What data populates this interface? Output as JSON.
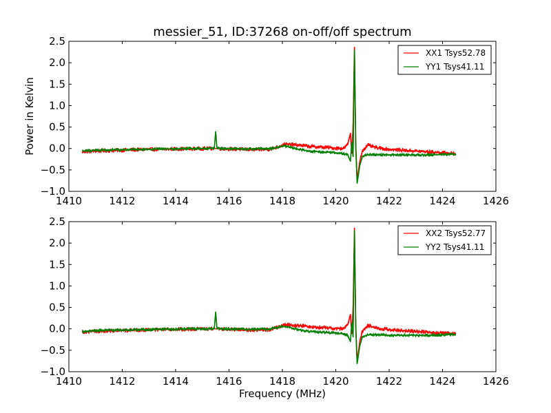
{
  "chart_data": [
    {
      "type": "line",
      "title": "messier_51, ID:37268 on-off/off spectrum",
      "xlabel": "",
      "ylabel": "Power in Kelvin",
      "xlim": [
        1410,
        1426
      ],
      "ylim": [
        -1.0,
        2.5
      ],
      "xticks": [
        "1410",
        "1412",
        "1414",
        "1416",
        "1418",
        "1420",
        "1422",
        "1424",
        "1426"
      ],
      "yticks": [
        "2.5",
        "2.0",
        "1.5",
        "1.0",
        "0.5",
        "0.0",
        "−0.5",
        "−1.0"
      ],
      "legend_position": "top-right",
      "series": [
        {
          "name": "XX1 Tsys52.78",
          "color": "#ff0000",
          "x": [
            1410.5,
            1411.0,
            1411.5,
            1412.0,
            1412.5,
            1413.0,
            1413.5,
            1414.0,
            1414.5,
            1415.0,
            1415.5,
            1416.0,
            1416.5,
            1417.0,
            1417.5,
            1417.9,
            1418.1,
            1418.3,
            1418.6,
            1419.0,
            1419.5,
            1420.0,
            1420.3,
            1420.45,
            1420.55,
            1420.6,
            1420.65,
            1420.7,
            1420.75,
            1420.8,
            1420.9,
            1421.0,
            1421.2,
            1421.5,
            1422.0,
            1422.5,
            1423.0,
            1423.5,
            1424.0,
            1424.5
          ],
          "y": [
            -0.08,
            -0.06,
            -0.05,
            -0.04,
            -0.03,
            -0.02,
            -0.02,
            -0.01,
            -0.01,
            0.0,
            0.0,
            -0.01,
            -0.02,
            -0.03,
            -0.02,
            0.05,
            0.1,
            0.09,
            0.08,
            0.05,
            0.03,
            0.01,
            0.0,
            0.1,
            0.36,
            -0.12,
            0.55,
            2.37,
            0.1,
            -0.75,
            -0.3,
            -0.05,
            0.08,
            0.02,
            -0.02,
            -0.04,
            -0.06,
            -0.08,
            -0.1,
            -0.12
          ]
        },
        {
          "name": "YY1 Tsys41.11",
          "color": "#008000",
          "x": [
            1410.5,
            1411.0,
            1411.5,
            1412.0,
            1412.5,
            1413.0,
            1413.5,
            1414.0,
            1414.5,
            1415.0,
            1415.45,
            1415.5,
            1415.55,
            1416.0,
            1416.5,
            1417.0,
            1417.5,
            1417.9,
            1418.1,
            1418.3,
            1418.6,
            1419.0,
            1419.5,
            1420.0,
            1420.3,
            1420.45,
            1420.55,
            1420.6,
            1420.65,
            1420.7,
            1420.75,
            1420.8,
            1420.9,
            1421.0,
            1421.2,
            1421.5,
            1422.0,
            1422.5,
            1423.0,
            1423.5,
            1424.0,
            1424.5
          ],
          "y": [
            -0.06,
            -0.04,
            -0.03,
            -0.03,
            -0.02,
            -0.02,
            -0.01,
            -0.01,
            0.0,
            0.0,
            0.0,
            0.4,
            0.0,
            0.0,
            -0.01,
            -0.01,
            0.0,
            0.04,
            0.06,
            0.03,
            -0.02,
            -0.06,
            -0.08,
            -0.1,
            -0.12,
            -0.15,
            -0.3,
            0.15,
            -0.2,
            2.3,
            0.0,
            -0.82,
            -0.4,
            -0.18,
            -0.14,
            -0.14,
            -0.15,
            -0.15,
            -0.15,
            -0.15,
            -0.14,
            -0.13
          ]
        }
      ]
    },
    {
      "type": "line",
      "title": "",
      "xlabel": "Frequency (MHz)",
      "ylabel": "",
      "xlim": [
        1410,
        1426
      ],
      "ylim": [
        -1.0,
        2.5
      ],
      "xticks": [
        "1410",
        "1412",
        "1414",
        "1416",
        "1418",
        "1420",
        "1422",
        "1424",
        "1426"
      ],
      "yticks": [
        "2.5",
        "2.0",
        "1.5",
        "1.0",
        "0.5",
        "0.0",
        "−0.5",
        "−1.0"
      ],
      "legend_position": "top-right",
      "series": [
        {
          "name": "XX2 Tsys52.77",
          "color": "#ff0000",
          "x": [
            1410.5,
            1411.0,
            1411.5,
            1412.0,
            1412.5,
            1413.0,
            1413.5,
            1414.0,
            1414.5,
            1415.0,
            1415.5,
            1416.0,
            1416.5,
            1417.0,
            1417.5,
            1417.9,
            1418.1,
            1418.3,
            1418.6,
            1419.0,
            1419.5,
            1420.0,
            1420.3,
            1420.45,
            1420.55,
            1420.6,
            1420.65,
            1420.7,
            1420.75,
            1420.8,
            1420.9,
            1421.0,
            1421.2,
            1421.5,
            1422.0,
            1422.5,
            1423.0,
            1423.5,
            1424.0,
            1424.5
          ],
          "y": [
            -0.07,
            -0.06,
            -0.05,
            -0.04,
            -0.03,
            -0.02,
            -0.02,
            -0.01,
            -0.01,
            0.0,
            0.0,
            -0.01,
            -0.02,
            -0.03,
            -0.02,
            0.05,
            0.1,
            0.09,
            0.08,
            0.05,
            0.03,
            0.01,
            0.0,
            0.1,
            0.34,
            -0.12,
            0.5,
            2.36,
            0.1,
            -0.76,
            -0.3,
            -0.05,
            0.08,
            0.02,
            -0.02,
            -0.04,
            -0.06,
            -0.08,
            -0.1,
            -0.12
          ]
        },
        {
          "name": "YY2 Tsys41.11",
          "color": "#008000",
          "x": [
            1410.5,
            1411.0,
            1411.5,
            1412.0,
            1412.5,
            1413.0,
            1413.5,
            1414.0,
            1414.5,
            1415.0,
            1415.45,
            1415.5,
            1415.55,
            1416.0,
            1416.5,
            1417.0,
            1417.5,
            1417.9,
            1418.1,
            1418.3,
            1418.6,
            1419.0,
            1419.5,
            1420.0,
            1420.3,
            1420.45,
            1420.55,
            1420.6,
            1420.65,
            1420.7,
            1420.75,
            1420.8,
            1420.9,
            1421.0,
            1421.2,
            1421.5,
            1422.0,
            1422.5,
            1423.0,
            1423.5,
            1424.0,
            1424.5
          ],
          "y": [
            -0.06,
            -0.04,
            -0.03,
            -0.03,
            -0.02,
            -0.02,
            -0.01,
            -0.01,
            0.0,
            0.0,
            0.0,
            0.4,
            0.0,
            0.0,
            -0.01,
            -0.01,
            0.0,
            0.04,
            0.06,
            0.03,
            -0.02,
            -0.06,
            -0.08,
            -0.1,
            -0.12,
            -0.15,
            -0.3,
            0.15,
            -0.2,
            2.3,
            0.0,
            -0.82,
            -0.4,
            -0.18,
            -0.14,
            -0.14,
            -0.15,
            -0.15,
            -0.15,
            -0.15,
            -0.14,
            -0.13
          ]
        }
      ]
    }
  ]
}
